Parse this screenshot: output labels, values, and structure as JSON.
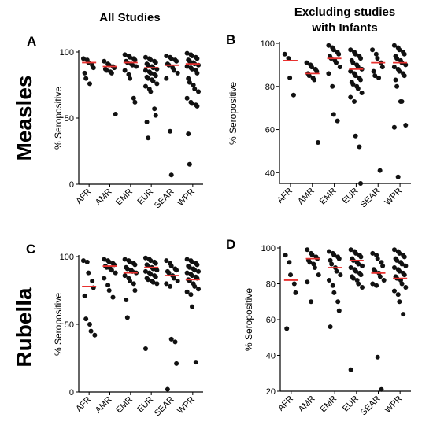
{
  "column_titles": [
    "All Studies",
    "Excluding studies",
    "with  Infants"
  ],
  "row_titles": [
    "Measles",
    "Rubella"
  ],
  "chart_data": [
    {
      "type": "scatter",
      "panel": "A",
      "ylabel": "% Seropositive",
      "ylim": [
        0,
        100
      ],
      "yticks": [
        0,
        50,
        100
      ],
      "categories": [
        "AFR",
        "AMR",
        "EMR",
        "EUR",
        "SEAR",
        "WPR"
      ],
      "medians": [
        92,
        89,
        92,
        88,
        90,
        91
      ],
      "points": [
        [
          95,
          94,
          92,
          90,
          88,
          84,
          80,
          76
        ],
        [
          93,
          91,
          90,
          89,
          88,
          87,
          86,
          85,
          84,
          53
        ],
        [
          98,
          97,
          96,
          95,
          94,
          93,
          92,
          91,
          90,
          89,
          86,
          83,
          80,
          65,
          62
        ],
        [
          96,
          95,
          94,
          93,
          92,
          91,
          90,
          89,
          88,
          87,
          86,
          85,
          84,
          83,
          82,
          81,
          80,
          79,
          78,
          76,
          74,
          72,
          70,
          57,
          52,
          47,
          35
        ],
        [
          97,
          96,
          95,
          94,
          93,
          91,
          90,
          88,
          86,
          84,
          80,
          40,
          7
        ],
        [
          99,
          98,
          97,
          96,
          95,
          94,
          93,
          92,
          91,
          90,
          89,
          88,
          87,
          86,
          84,
          80,
          77,
          75,
          72,
          70,
          65,
          62,
          61,
          60,
          59,
          38,
          15
        ]
      ]
    },
    {
      "type": "scatter",
      "panel": "B",
      "ylabel": "% Seropositive",
      "ylim": [
        35,
        100
      ],
      "yticks": [
        40,
        60,
        80,
        100
      ],
      "categories": [
        "AFR",
        "AMR",
        "EMR",
        "EUR",
        "SEAR",
        "WPR"
      ],
      "medians": [
        92,
        86,
        93,
        88,
        91,
        91
      ],
      "points": [
        [
          95,
          93,
          84,
          76
        ],
        [
          91,
          90,
          89,
          88,
          87,
          86,
          85,
          84,
          83,
          54
        ],
        [
          99,
          98,
          97,
          96,
          95,
          94,
          93,
          92,
          91,
          89,
          86,
          80,
          67,
          64
        ],
        [
          97,
          96,
          95,
          94,
          93,
          92,
          91,
          90,
          89,
          88,
          87,
          86,
          85,
          84,
          83,
          82,
          81,
          80,
          79,
          77,
          75,
          73,
          57,
          52,
          35
        ],
        [
          97,
          95,
          93,
          91,
          89,
          87,
          85,
          84,
          41
        ],
        [
          99,
          98,
          97,
          96,
          95,
          94,
          93,
          92,
          91,
          90,
          89,
          88,
          87,
          86,
          85,
          83,
          80,
          73,
          73,
          62,
          61,
          38
        ]
      ]
    },
    {
      "type": "scatter",
      "panel": "C",
      "ylabel": "% Seropositive",
      "ylim": [
        0,
        100
      ],
      "yticks": [
        0,
        50,
        100
      ],
      "categories": [
        "AFR",
        "AMR",
        "EMR",
        "EUR",
        "SEAR",
        "WPR"
      ],
      "medians": [
        78,
        93,
        88,
        92,
        86,
        83
      ],
      "points": [
        [
          97,
          96,
          88,
          82,
          77,
          71,
          54,
          50,
          45,
          42
        ],
        [
          98,
          97,
          96,
          95,
          94,
          93,
          92,
          91,
          90,
          88,
          84,
          79,
          75,
          70
        ],
        [
          98,
          97,
          96,
          95,
          94,
          92,
          91,
          90,
          89,
          88,
          86,
          84,
          82,
          80,
          75,
          68,
          55
        ],
        [
          99,
          98,
          97,
          96,
          95,
          94,
          93,
          92,
          91,
          90,
          89,
          88,
          87,
          86,
          85,
          84,
          83,
          82,
          81,
          80,
          32
        ],
        [
          97,
          95,
          93,
          91,
          90,
          89,
          88,
          86,
          84,
          82,
          80,
          78,
          39,
          37,
          21,
          2
        ],
        [
          98,
          97,
          96,
          95,
          94,
          93,
          92,
          91,
          90,
          89,
          88,
          87,
          86,
          85,
          84,
          83,
          82,
          80,
          78,
          76,
          74,
          72,
          63,
          22
        ]
      ]
    },
    {
      "type": "scatter",
      "panel": "D",
      "ylabel": "% Seropositive",
      "ylim": [
        20,
        100
      ],
      "yticks": [
        20,
        40,
        60,
        80,
        100
      ],
      "categories": [
        "AFR",
        "AMR",
        "EMR",
        "EUR",
        "SEAR",
        "WPR"
      ],
      "medians": [
        82,
        94,
        89,
        93,
        86,
        83
      ],
      "points": [
        [
          96,
          92,
          85,
          80,
          75,
          55
        ],
        [
          99,
          97,
          96,
          95,
          94,
          93,
          92,
          91,
          89,
          85,
          81,
          70
        ],
        [
          98,
          97,
          96,
          95,
          94,
          93,
          91,
          89,
          87,
          85,
          82,
          79,
          75,
          70,
          65,
          56
        ],
        [
          99,
          98,
          97,
          96,
          95,
          94,
          93,
          92,
          91,
          90,
          89,
          88,
          87,
          86,
          85,
          84,
          83,
          82,
          80,
          78,
          32
        ],
        [
          97,
          96,
          94,
          92,
          90,
          88,
          87,
          86,
          84,
          82,
          80,
          79,
          39,
          21
        ],
        [
          99,
          98,
          97,
          96,
          95,
          94,
          93,
          92,
          91,
          90,
          89,
          88,
          87,
          86,
          85,
          84,
          83,
          82,
          80,
          78,
          76,
          74,
          70,
          63
        ]
      ]
    }
  ]
}
